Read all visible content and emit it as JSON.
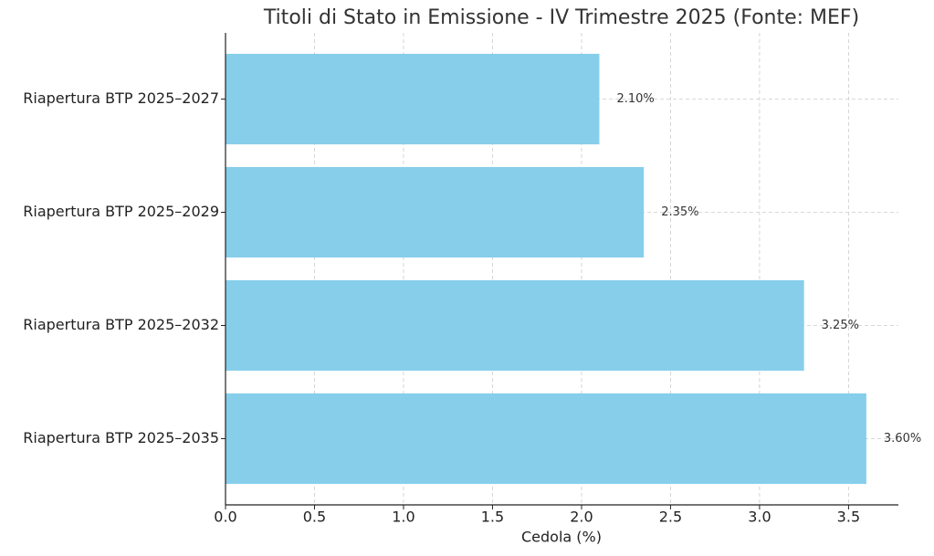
{
  "chart_data": {
    "type": "barh",
    "title": "Titoli di Stato in Emissione - IV Trimestre 2025 (Fonte: MEF)",
    "x_label": "Cedola (%)",
    "categories": [
      "Riapertura BTP 2025–2027",
      "Riapertura BTP 2025–2029",
      "Riapertura BTP 2025–2032",
      "Riapertura BTP 2025–2035"
    ],
    "values": [
      2.1,
      2.35,
      3.25,
      3.6
    ],
    "value_labels": [
      "2.10%",
      "2.35%",
      "3.25%",
      "3.60%"
    ],
    "color": "#87ceeb",
    "xlim": [
      0,
      3.78
    ],
    "xticks": [
      {
        "value": 0,
        "label": "0.0"
      },
      0.5,
      {
        "value": 1,
        "label": "1.0"
      },
      1.5,
      {
        "value": 2,
        "label": "2.0"
      },
      2.5,
      {
        "value": 3,
        "label": "3.0"
      },
      3.5
    ],
    "grid": true
  }
}
